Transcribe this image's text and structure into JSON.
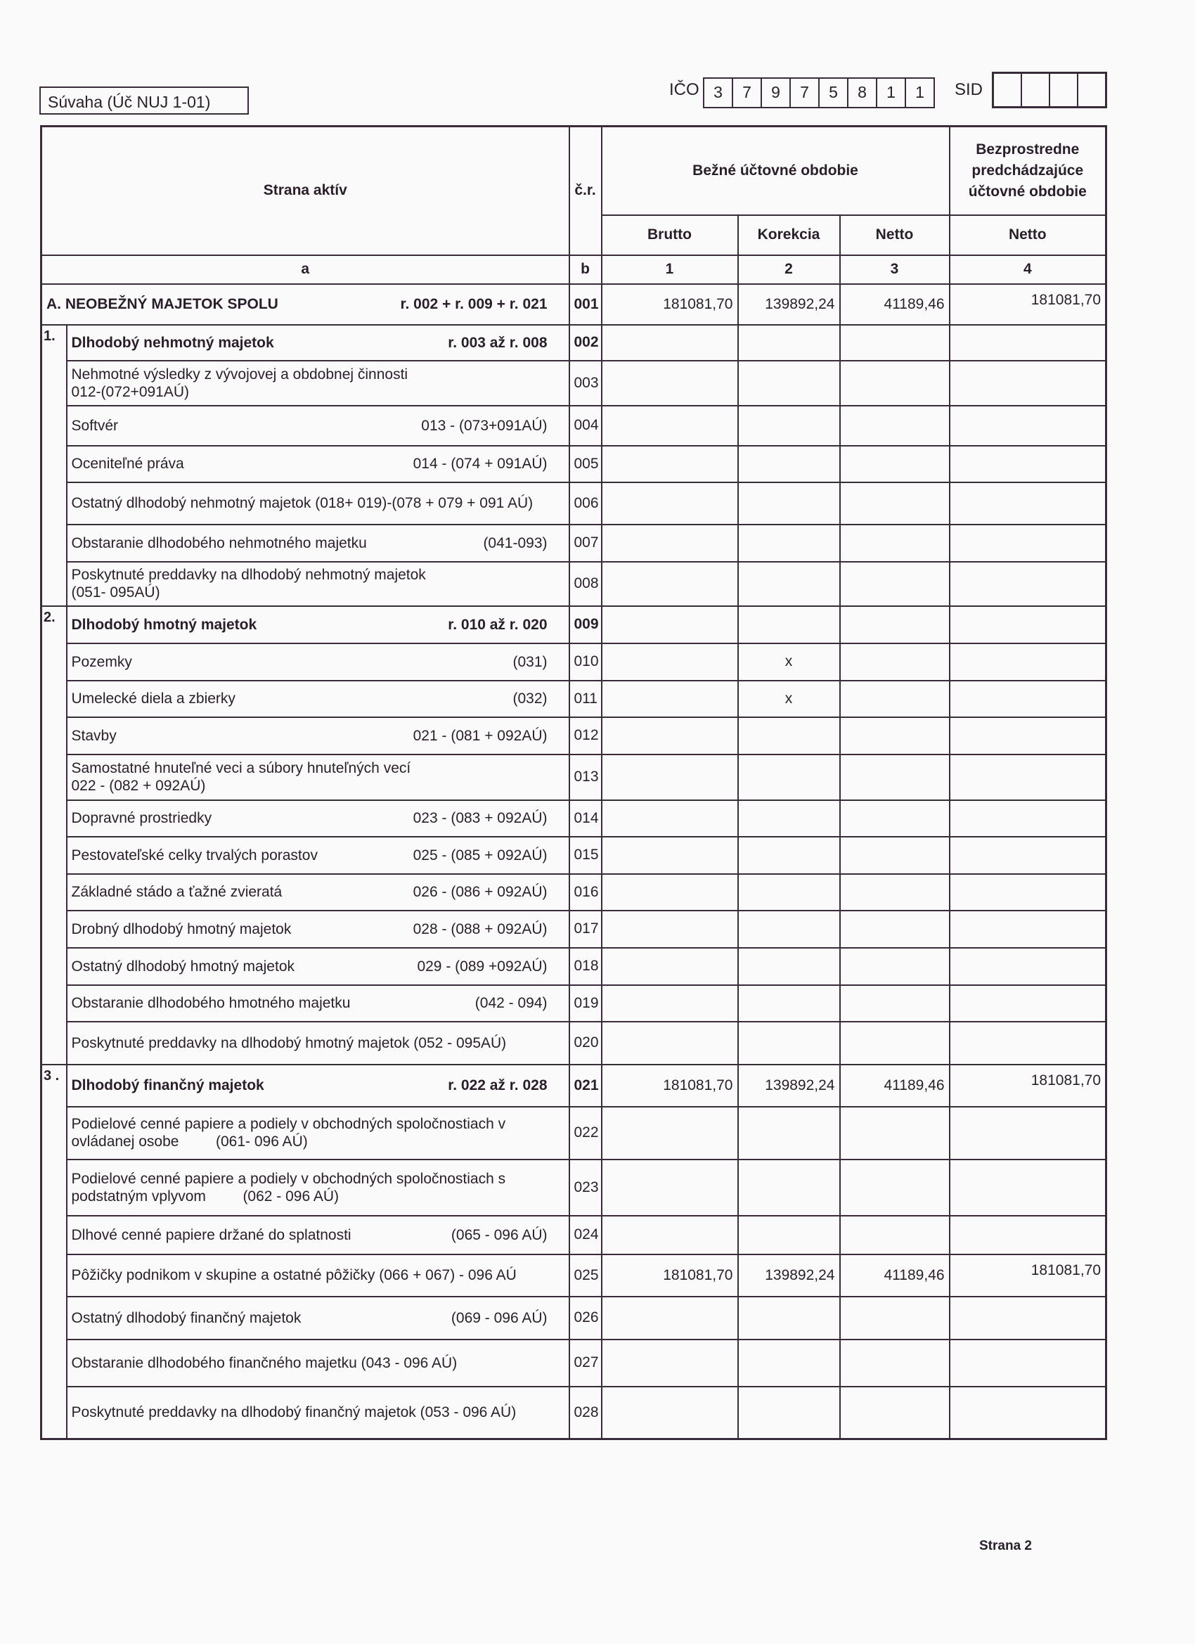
{
  "header": {
    "form_title": "Súvaha (Úč NUJ 1-01)",
    "ico_label": "IČO",
    "ico_digits": [
      "3",
      "7",
      "9",
      "7",
      "5",
      "8",
      "1",
      "1"
    ],
    "sid_label": "SID"
  },
  "table_header": {
    "side": "Strana aktív",
    "cr": "č.r.",
    "current_period": "Bežné účtovné obdobie",
    "previous_period": "Bezprostredne predchádzajúce účtovné obdobie",
    "brutto": "Brutto",
    "korekcia": "Korekcia",
    "netto": "Netto",
    "netto_prev": "Netto",
    "col_a": "a",
    "col_b": "b",
    "col_1": "1",
    "col_2": "2",
    "col_3": "3",
    "col_4": "4"
  },
  "sections": [
    {
      "number": "1.",
      "start": "002",
      "end": "008"
    },
    {
      "number": "2.",
      "start": "009",
      "end": "020"
    },
    {
      "number": "3 .",
      "start": "021",
      "end": "028"
    }
  ],
  "rows": [
    {
      "cr": "001",
      "label": "A. NEOBEŽNÝ MAJETOK  SPOLU",
      "formula": "r. 002 + r. 009 + r. 021",
      "bold": true,
      "brutto": "181081,70",
      "korekcia": "139892,24",
      "netto": "41189,46",
      "prev": "181081,70"
    },
    {
      "cr": "002",
      "label": "Dlhodobý nehmotný majetok",
      "formula": "r. 003 až r. 008",
      "bold": true
    },
    {
      "cr": "003",
      "label": "Nehmotné výsledky z vývojovej a obdobnej činnosti",
      "formula": "012-(072+091AÚ)"
    },
    {
      "cr": "004",
      "label": "Softvér",
      "formula": "013 - (073+091AÚ)"
    },
    {
      "cr": "005",
      "label": "Oceniteľné práva",
      "formula": "014 - (074 + 091AÚ)"
    },
    {
      "cr": "006",
      "label": "Ostatný dlhodobý nehmotný majetok (018+ 019)-(078 + 079 + 091 AÚ)",
      "formula": ""
    },
    {
      "cr": "007",
      "label": "Obstaranie dlhodobého nehmotného majetku",
      "formula": "(041-093)"
    },
    {
      "cr": "008",
      "label": "Poskytnuté preddavky na dlhodobý nehmotný majetok",
      "formula": "(051- 095AÚ)"
    },
    {
      "cr": "009",
      "label": "Dlhodobý hmotný majetok",
      "formula": "r. 010 až r. 020",
      "bold": true
    },
    {
      "cr": "010",
      "label": "Pozemky",
      "formula": "(031)",
      "korekcia": "x"
    },
    {
      "cr": "011",
      "label": "Umelecké diela a zbierky",
      "formula": "(032)",
      "korekcia": "x"
    },
    {
      "cr": "012",
      "label": "Stavby",
      "formula": "021 - (081 + 092AÚ)"
    },
    {
      "cr": "013",
      "label": "Samostatné hnuteľné veci a súbory hnuteľných vecí",
      "formula": "022 - (082 + 092AÚ)"
    },
    {
      "cr": "014",
      "label": "Dopravné prostriedky",
      "formula": "023 - (083 + 092AÚ)"
    },
    {
      "cr": "015",
      "label": "Pestovateľské celky trvalých porastov",
      "formula": "025 - (085 + 092AÚ)"
    },
    {
      "cr": "016",
      "label": "Základné stádo a ťažné zvieratá",
      "formula": "026 - (086 + 092AÚ)"
    },
    {
      "cr": "017",
      "label": "Drobný dlhodobý hmotný majetok",
      "formula": "028 - (088 + 092AÚ)"
    },
    {
      "cr": "018",
      "label": "Ostatný dlhodobý hmotný majetok",
      "formula": "029 - (089 +092AÚ)"
    },
    {
      "cr": "019",
      "label": "Obstaranie dlhodobého hmotného majetku",
      "formula": "(042 - 094)"
    },
    {
      "cr": "020",
      "label": "Poskytnuté preddavky na dlhodobý hmotný majetok (052 - 095AÚ)",
      "formula": ""
    },
    {
      "cr": "021",
      "label": "Dlhodobý finančný majetok",
      "formula": "r. 022 až r. 028",
      "bold": true,
      "brutto": "181081,70",
      "korekcia": "139892,24",
      "netto": "41189,46",
      "prev": "181081,70"
    },
    {
      "cr": "022",
      "label": "Podielové cenné papiere a podiely v obchodných spoločnostiach v ovládanej osobe",
      "formula": "(061- 096 AÚ)"
    },
    {
      "cr": "023",
      "label": "Podielové cenné papiere a podiely v obchodných spoločnostiach s  podstatným vplyvom",
      "formula": "(062 - 096 AÚ)"
    },
    {
      "cr": "024",
      "label": "Dlhové cenné papiere držané do splatnosti",
      "formula": "(065 - 096 AÚ)"
    },
    {
      "cr": "025",
      "label": "Pôžičky podnikom v skupine a ostatné pôžičky (066 + 067) - 096 AÚ",
      "formula": "",
      "brutto": "181081,70",
      "korekcia": "139892,24",
      "netto": "41189,46",
      "prev": "181081,70"
    },
    {
      "cr": "026",
      "label": "Ostatný dlhodobý finančný majetok",
      "formula": "(069 - 096 AÚ)"
    },
    {
      "cr": "027",
      "label": "Obstaranie dlhodobého finančného majetku (043 - 096 AÚ)",
      "formula": ""
    },
    {
      "cr": "028",
      "label": "Poskytnuté preddavky na dlhodobý finančný majetok (053 - 096 AÚ)",
      "formula": ""
    }
  ],
  "footer": {
    "page": "Strana 2"
  }
}
